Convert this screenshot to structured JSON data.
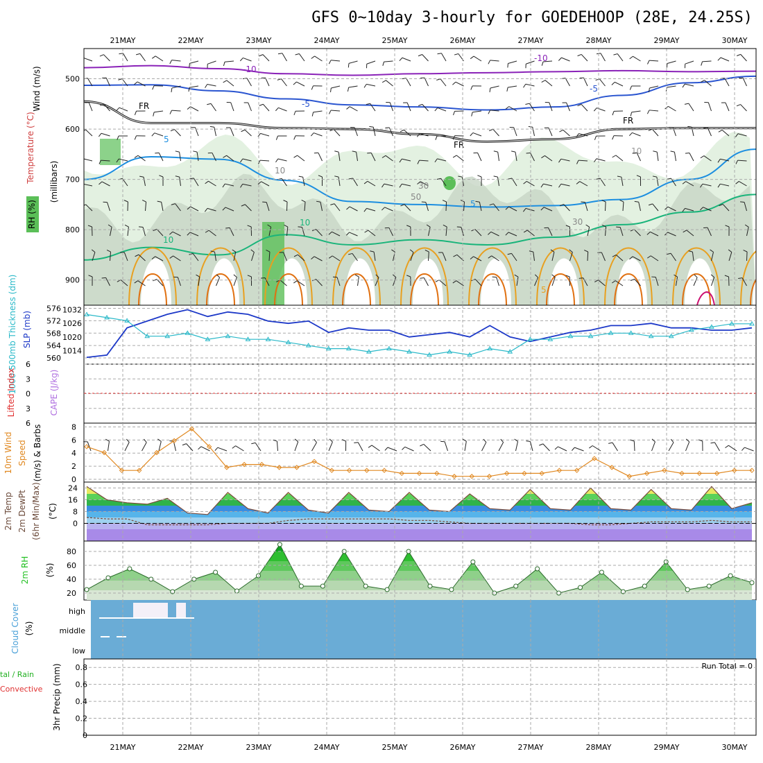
{
  "title": "GFS 0~10day 3-hourly for GOEDEHOOP (28E, 24.25S)",
  "colors": {
    "background": "#ffffff",
    "rh_light": "#e3f1e1",
    "rh_mid": "#c7d6c5",
    "rh_dark": "#b3c2b1",
    "rh_green": "#5bbf58",
    "temp_purple": "#8a22b8",
    "temp_blue": "#2a55d0",
    "temp_lightblue": "#1c8ee0",
    "temp_teal": "#19b47a",
    "temp_orange": "#e8a020",
    "temp_darkorange": "#e07010",
    "temp_magenta": "#cc1070",
    "freezing_level": "#111111",
    "slp": "#1c38c8",
    "thickness": "#28b8c8",
    "lifted_index": "#e03030",
    "cape": "#b070e0",
    "wind10m": "#e08820",
    "barb": "#6b4a3a",
    "cloud_cover_bg": "#6aacd6",
    "cloud_fill": "#f4f0f8",
    "rh2m": "#22c022",
    "grid": "#aaaaaa"
  },
  "chart_data": [
    {
      "id": "upper_air",
      "type": "heatmap",
      "ylabel_parts": [
        "Wind (m/s)",
        "Temperature (°C)",
        "RH (%)",
        "(millibars)"
      ],
      "y_ticks": [
        500,
        600,
        700,
        800,
        900
      ],
      "ylim": [
        440,
        950
      ],
      "x_ticks": [
        "21MAY",
        "22MAY",
        "23MAY",
        "24MAY",
        "25MAY",
        "26MAY",
        "27MAY",
        "28MAY",
        "29MAY",
        "30MAY"
      ],
      "temperature_contour_labels": [
        "-10",
        "-10",
        "-5",
        "-5",
        "5",
        "5",
        "5",
        "10",
        "10",
        "10",
        "5",
        "FR",
        "FR",
        "FR"
      ],
      "rh_contour_labels": [
        "10",
        "10",
        "30",
        "30",
        "50",
        "50",
        "30"
      ],
      "isotherm_levels_mb": [
        {
          "label": "-10",
          "values": [
            478,
            474,
            480,
            490,
            493,
            490,
            488,
            486,
            484,
            486,
            485
          ]
        },
        {
          "label": "-5",
          "values": [
            513,
            512,
            524,
            540,
            552,
            556,
            562,
            556,
            533,
            508,
            495
          ]
        },
        {
          "label": "FR",
          "values": [
            545,
            588,
            588,
            598,
            600,
            610,
            625,
            620,
            600,
            598,
            598
          ]
        },
        {
          "label": "5",
          "values": [
            700,
            655,
            660,
            702,
            744,
            750,
            755,
            752,
            740,
            700,
            640
          ]
        },
        {
          "label": "10",
          "values": [
            860,
            835,
            850,
            810,
            830,
            820,
            830,
            815,
            790,
            765,
            730
          ]
        }
      ]
    },
    {
      "id": "slp_thickness",
      "type": "line",
      "ylabel_left": "1000-500mb Thickness (dm)",
      "ylabel_right": "SLP (mb)",
      "left_ticks": [
        560,
        564,
        568,
        572,
        576
      ],
      "right_ticks": [
        1014,
        1020,
        1026,
        1032
      ],
      "series": [
        {
          "name": "SLP (mb)",
          "values": [
            1011,
            1012,
            1024,
            1027,
            1030,
            1032,
            1029,
            1031,
            1030,
            1027,
            1026,
            1027,
            1022,
            1024,
            1023,
            1023,
            1020,
            1021,
            1022,
            1020,
            1025,
            1020,
            1018,
            1020,
            1022,
            1023,
            1025,
            1025,
            1026,
            1024,
            1024,
            1023,
            1023,
            1024
          ]
        },
        {
          "name": "1000-500mb Thickness (dm)",
          "values": [
            574,
            573,
            572,
            567,
            567,
            568,
            566,
            567,
            566,
            566,
            565,
            564,
            563,
            563,
            562,
            563,
            562,
            561,
            562,
            561,
            563,
            562,
            566,
            566,
            567,
            567,
            568,
            568,
            567,
            567,
            569,
            570,
            571,
            571
          ]
        }
      ]
    },
    {
      "id": "lifted_cape",
      "type": "line",
      "ylabel_left": "Lifted Index",
      "ylabel_right": "CAPE (J/kg)",
      "ticks": [
        -6,
        -3,
        0,
        3,
        6
      ],
      "tick_labels": [
        "6",
        "3",
        "0",
        "3",
        "6"
      ]
    },
    {
      "id": "wind10m",
      "type": "line",
      "ylabel": "10m Wind Speed (m/s) & Barbs",
      "ticks": [
        0,
        2,
        4,
        6,
        8
      ],
      "series": [
        {
          "name": "10m Wind Speed",
          "values": [
            5.5,
            4.5,
            1.5,
            1.5,
            4.5,
            6.5,
            8.5,
            5.5,
            2,
            2.5,
            2.5,
            2,
            2,
            3,
            1.5,
            1.5,
            1.5,
            1.5,
            1,
            1,
            1,
            0.5,
            0.5,
            0.5,
            1,
            1,
            1,
            1.5,
            1.5,
            3.5,
            2,
            0.5,
            1,
            1.5,
            1,
            1,
            1,
            1.5,
            1.5
          ]
        }
      ]
    },
    {
      "id": "temp2m",
      "type": "area",
      "ylabel": "2m Temp 2m DewPt (6hr Min/Max) (°C)",
      "ticks": [
        0,
        8,
        16,
        24
      ],
      "series": [
        {
          "name": "2m Temp",
          "values": [
            25,
            16,
            14,
            13,
            17,
            7,
            6,
            21,
            10,
            7,
            21,
            9,
            7,
            21,
            9,
            8,
            21,
            9,
            8,
            20,
            10,
            9,
            23,
            10,
            9,
            24,
            10,
            9,
            23,
            10,
            9,
            25,
            10,
            14
          ]
        },
        {
          "name": "2m DewPt",
          "values": [
            4,
            3,
            3,
            -1,
            -1,
            -1,
            -1,
            0,
            0,
            0,
            2,
            3,
            3,
            3,
            3,
            3,
            2,
            2,
            1,
            0,
            0,
            0,
            0,
            0,
            0,
            -1,
            -1,
            0,
            1,
            1,
            1,
            2,
            1,
            1
          ]
        }
      ]
    },
    {
      "id": "rh2m",
      "type": "area",
      "ylabel": "2m RH (%)",
      "ticks": [
        20,
        40,
        60,
        80
      ],
      "series": [
        {
          "name": "2m RH",
          "values": [
            25,
            42,
            55,
            40,
            22,
            40,
            50,
            23,
            45,
            90,
            30,
            30,
            80,
            30,
            25,
            80,
            30,
            25,
            65,
            20,
            30,
            55,
            20,
            28,
            50,
            22,
            30,
            65,
            25,
            30,
            45,
            35
          ]
        }
      ]
    },
    {
      "id": "cloud_cover",
      "type": "bar",
      "ylabel": "Cloud Cover (%)",
      "levels": [
        "high",
        "middle",
        "low"
      ]
    },
    {
      "id": "precip",
      "type": "bar",
      "ylabel_left": "Total / Rain Convective",
      "ylabel_right": "3hr Precip (mm)",
      "ticks": [
        0,
        0.2,
        0.4,
        0.6,
        0.8
      ],
      "annotation": "Run Total = 0",
      "values": []
    }
  ]
}
